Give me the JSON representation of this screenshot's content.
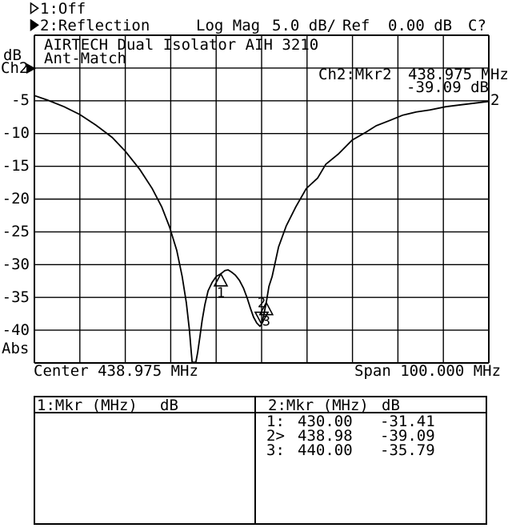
{
  "colors": {
    "foreground": "#000000",
    "background": "#ffffff"
  },
  "display": {
    "softkeys": {
      "channel1_label": "1:Off",
      "channel2_label": "2:Reflection",
      "format": "Log Mag",
      "scale": "5.0 dB/",
      "ref_label": "Ref",
      "ref_value": "0.00 dB",
      "cal_status": "C?"
    },
    "title_line1": "AIRTECH Dual Isolator AIH 3210",
    "title_line2": "Ant-Match",
    "y_axis": {
      "unit": "dB",
      "channel": "Ch2",
      "bottom_label": "Abs",
      "tick_labels": [
        "-5",
        "-10",
        "-15",
        "-20",
        "-25",
        "-30",
        "-35",
        "-40"
      ]
    },
    "marker_readout": {
      "label": "Ch2:Mkr2",
      "freq": "438.975 MHz",
      "level": "-39.09 dB"
    },
    "x_axis": {
      "center": "Center 438.975 MHz",
      "span": "Span 100.000 MHz"
    },
    "trace_number": "2",
    "marker_table": {
      "left": {
        "header_label": "1:Mkr (MHz)",
        "header_unit": "dB"
      },
      "right": {
        "header_label": "2:Mkr (MHz)",
        "header_unit": "dB",
        "rows": [
          {
            "id": "1:",
            "freq": "430.00",
            "db": "-31.41"
          },
          {
            "id": "2>",
            "freq": "438.98",
            "db": "-39.09"
          },
          {
            "id": "3:",
            "freq": "440.00",
            "db": "-35.79"
          }
        ]
      }
    }
  },
  "chart_data": {
    "type": "line",
    "title": "AIRTECH Dual Isolator AIH 3210 / Ant-Match",
    "xlabel": "MHz",
    "ylabel": "dB",
    "x_axis": {
      "center_mhz": 438.975,
      "span_mhz": 100.0,
      "start_mhz": 388.975,
      "stop_mhz": 488.975,
      "mhz_per_div": 10
    },
    "y_axis": {
      "unit": "dB",
      "ref_db": 0.0,
      "db_per_div": 5.0,
      "top_db": 5.0,
      "bottom_db": -45.0,
      "tick_labels": [
        -5,
        -10,
        -15,
        -20,
        -25,
        -30,
        -35,
        -40
      ]
    },
    "grid": {
      "x_divisions": 10,
      "y_divisions": 10,
      "grid_on": true
    },
    "series": [
      {
        "name": "2:Reflection Log Mag",
        "points": [
          [
            389.0,
            -4.2
          ],
          [
            391.9,
            -4.9
          ],
          [
            395.5,
            -5.9
          ],
          [
            399.0,
            -7.1
          ],
          [
            402.5,
            -8.7
          ],
          [
            406.1,
            -10.6
          ],
          [
            409.0,
            -12.7
          ],
          [
            412.2,
            -15.5
          ],
          [
            414.9,
            -18.4
          ],
          [
            417.0,
            -21.2
          ],
          [
            418.7,
            -24.2
          ],
          [
            420.3,
            -27.8
          ],
          [
            421.5,
            -31.8
          ],
          [
            422.4,
            -35.8
          ],
          [
            423.1,
            -40.0
          ],
          [
            423.5,
            -43.4
          ],
          [
            423.7,
            -44.9
          ],
          [
            424.5,
            -44.9
          ],
          [
            424.9,
            -43.4
          ],
          [
            425.4,
            -41.0
          ],
          [
            425.9,
            -38.5
          ],
          [
            426.5,
            -36.1
          ],
          [
            427.2,
            -34.0
          ],
          [
            428.1,
            -32.7
          ],
          [
            429.0,
            -31.8
          ],
          [
            430.0,
            -31.4
          ],
          [
            430.9,
            -30.9
          ],
          [
            431.6,
            -30.8
          ],
          [
            432.3,
            -31.1
          ],
          [
            433.2,
            -31.6
          ],
          [
            434.1,
            -32.4
          ],
          [
            435.0,
            -33.6
          ],
          [
            435.8,
            -35.1
          ],
          [
            436.5,
            -36.6
          ],
          [
            437.2,
            -38.0
          ],
          [
            437.9,
            -38.9
          ],
          [
            438.6,
            -39.4
          ],
          [
            439.0,
            -39.1
          ],
          [
            439.5,
            -37.5
          ],
          [
            440.0,
            -35.8
          ],
          [
            440.6,
            -33.3
          ],
          [
            441.3,
            -31.8
          ],
          [
            442.7,
            -27.3
          ],
          [
            444.4,
            -24.1
          ],
          [
            446.5,
            -21.2
          ],
          [
            448.8,
            -18.4
          ],
          [
            451.3,
            -16.8
          ],
          [
            453.1,
            -14.7
          ],
          [
            455.9,
            -13.1
          ],
          [
            458.9,
            -11.0
          ],
          [
            461.9,
            -9.8
          ],
          [
            464.2,
            -8.8
          ],
          [
            467.2,
            -8.0
          ],
          [
            470.0,
            -7.2
          ],
          [
            473.0,
            -6.7
          ],
          [
            476.0,
            -6.4
          ],
          [
            479.5,
            -5.9
          ],
          [
            483.0,
            -5.6
          ],
          [
            486.5,
            -5.3
          ],
          [
            489.0,
            -5.1
          ]
        ]
      }
    ],
    "markers": [
      {
        "n": "1",
        "freq_mhz": 430.0,
        "db": -31.41,
        "flipped": false
      },
      {
        "n": "2",
        "freq_mhz": 438.98,
        "db": -39.09,
        "flipped": true
      },
      {
        "n": "3",
        "freq_mhz": 440.0,
        "db": -35.79,
        "flipped": false
      }
    ]
  }
}
